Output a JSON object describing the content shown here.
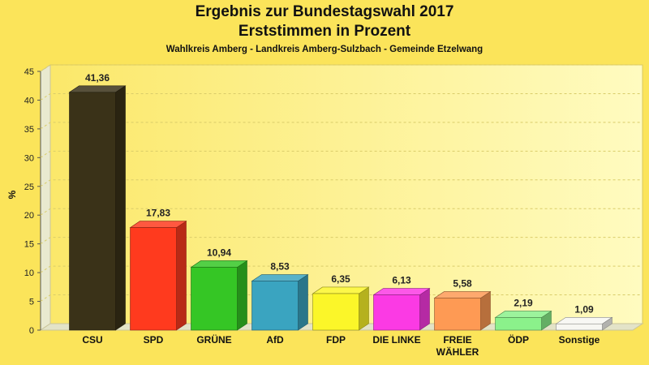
{
  "chart_data": {
    "type": "bar",
    "title": "Ergebnis zur Bundestagswahl 2017",
    "title_line2": "Erststimmen in Prozent",
    "subtitle": "Wahlkreis Amberg - Landkreis Amberg-Sulzbach - Gemeinde Etzelwang",
    "ylabel": "%",
    "ylim": [
      0,
      45
    ],
    "yticks": [
      0,
      5,
      10,
      15,
      20,
      25,
      30,
      35,
      40,
      45
    ],
    "grid": true,
    "categories": [
      [
        "CSU"
      ],
      [
        "SPD"
      ],
      [
        "GRÜNE"
      ],
      [
        "AfD"
      ],
      [
        "FDP"
      ],
      [
        "DIE LINKE"
      ],
      [
        "FREIE",
        "WÄHLER"
      ],
      [
        "ÖDP"
      ],
      [
        "Sonstige"
      ]
    ],
    "values": [
      41.36,
      17.83,
      10.94,
      8.53,
      6.35,
      6.13,
      5.58,
      2.19,
      1.09
    ],
    "value_labels": [
      "41,36",
      "17,83",
      "10,94",
      "8,53",
      "6,35",
      "6,13",
      "5,58",
      "2,19",
      "1,09"
    ],
    "colors": [
      "#3a3218",
      "#ff3a1e",
      "#35c625",
      "#3aa4c0",
      "#fbf629",
      "#fb3ae4",
      "#fe9a54",
      "#8bf18b",
      "#f7f7f2"
    ],
    "background": "#fbe45a"
  }
}
